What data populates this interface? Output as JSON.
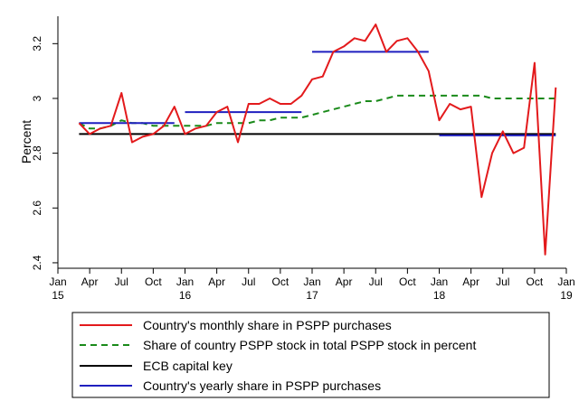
{
  "chart_data": {
    "type": "line",
    "ylabel": "Percent",
    "xlabel": "",
    "ylim": [
      2.38,
      3.3
    ],
    "yticks": [
      2.4,
      2.6,
      2.8,
      3,
      3.2
    ],
    "ytick_labels": [
      "2.4",
      "2.6",
      "2.8",
      "3",
      "3.2"
    ],
    "xlim": [
      "2015-01",
      "2019-01"
    ],
    "xticks": [
      {
        "x": "2015-01",
        "line1": "Jan",
        "line2": "15"
      },
      {
        "x": "2015-04",
        "line1": "Apr",
        "line2": ""
      },
      {
        "x": "2015-07",
        "line1": "Jul",
        "line2": ""
      },
      {
        "x": "2015-10",
        "line1": "Oct",
        "line2": ""
      },
      {
        "x": "2016-01",
        "line1": "Jan",
        "line2": "16"
      },
      {
        "x": "2016-04",
        "line1": "Apr",
        "line2": ""
      },
      {
        "x": "2016-07",
        "line1": "Jul",
        "line2": ""
      },
      {
        "x": "2016-10",
        "line1": "Oct",
        "line2": ""
      },
      {
        "x": "2017-01",
        "line1": "Jan",
        "line2": "17"
      },
      {
        "x": "2017-04",
        "line1": "Apr",
        "line2": ""
      },
      {
        "x": "2017-07",
        "line1": "Jul",
        "line2": ""
      },
      {
        "x": "2017-10",
        "line1": "Oct",
        "line2": ""
      },
      {
        "x": "2018-01",
        "line1": "Jan",
        "line2": "18"
      },
      {
        "x": "2018-04",
        "line1": "Apr",
        "line2": ""
      },
      {
        "x": "2018-07",
        "line1": "Jul",
        "line2": ""
      },
      {
        "x": "2018-10",
        "line1": "Oct",
        "line2": ""
      },
      {
        "x": "2019-01",
        "line1": "Jan",
        "line2": "19"
      }
    ],
    "grid": false,
    "legend_position": "bottom",
    "series": [
      {
        "name": "Country's monthly share in PSPP purchases",
        "color": "#e31a1c",
        "style": "solid",
        "x": [
          "2015-03",
          "2015-04",
          "2015-05",
          "2015-06",
          "2015-07",
          "2015-08",
          "2015-09",
          "2015-10",
          "2015-11",
          "2015-12",
          "2016-01",
          "2016-02",
          "2016-03",
          "2016-04",
          "2016-05",
          "2016-06",
          "2016-07",
          "2016-08",
          "2016-09",
          "2016-10",
          "2016-11",
          "2016-12",
          "2017-01",
          "2017-02",
          "2017-03",
          "2017-04",
          "2017-05",
          "2017-06",
          "2017-07",
          "2017-08",
          "2017-09",
          "2017-10",
          "2017-11",
          "2017-12",
          "2018-01",
          "2018-02",
          "2018-03",
          "2018-04",
          "2018-05",
          "2018-06",
          "2018-07",
          "2018-08",
          "2018-09",
          "2018-10",
          "2018-11",
          "2018-12"
        ],
        "y": [
          2.91,
          2.87,
          2.89,
          2.9,
          3.02,
          2.84,
          2.86,
          2.87,
          2.9,
          2.97,
          2.87,
          2.89,
          2.9,
          2.95,
          2.97,
          2.84,
          2.98,
          2.98,
          3.0,
          2.98,
          2.98,
          3.01,
          3.07,
          3.08,
          3.17,
          3.19,
          3.22,
          3.21,
          3.27,
          3.17,
          3.21,
          3.22,
          3.17,
          3.1,
          2.92,
          2.98,
          2.96,
          2.97,
          2.64,
          2.8,
          2.88,
          2.8,
          2.82,
          3.13,
          2.43,
          3.04
        ]
      },
      {
        "name": "Share of country PSPP stock in total PSPP stock in percent",
        "color": "#1a8a1a",
        "style": "dashed",
        "x": [
          "2015-03",
          "2015-04",
          "2015-05",
          "2015-06",
          "2015-07",
          "2015-08",
          "2015-09",
          "2015-10",
          "2015-11",
          "2015-12",
          "2016-01",
          "2016-02",
          "2016-03",
          "2016-04",
          "2016-05",
          "2016-06",
          "2016-07",
          "2016-08",
          "2016-09",
          "2016-10",
          "2016-11",
          "2016-12",
          "2017-01",
          "2017-02",
          "2017-03",
          "2017-04",
          "2017-05",
          "2017-06",
          "2017-07",
          "2017-08",
          "2017-09",
          "2017-10",
          "2017-11",
          "2017-12",
          "2018-01",
          "2018-02",
          "2018-03",
          "2018-04",
          "2018-05",
          "2018-06",
          "2018-07",
          "2018-08",
          "2018-09",
          "2018-10",
          "2018-11",
          "2018-12"
        ],
        "y": [
          2.91,
          2.89,
          2.89,
          2.9,
          2.92,
          2.91,
          2.91,
          2.9,
          2.9,
          2.9,
          2.9,
          2.9,
          2.9,
          2.91,
          2.91,
          2.91,
          2.91,
          2.92,
          2.92,
          2.93,
          2.93,
          2.93,
          2.94,
          2.95,
          2.96,
          2.97,
          2.98,
          2.99,
          2.99,
          3.0,
          3.01,
          3.01,
          3.01,
          3.01,
          3.01,
          3.01,
          3.01,
          3.01,
          3.01,
          3.0,
          3.0,
          3.0,
          3.0,
          3.0,
          3.0,
          3.0
        ]
      },
      {
        "name": "ECB capital key",
        "color": "#000000",
        "style": "solid",
        "x": [
          "2015-03",
          "2018-12"
        ],
        "y": [
          2.87,
          2.87
        ]
      },
      {
        "name": "Country's yearly share in PSPP purchases",
        "color": "#1f1fbf",
        "style": "solid",
        "segments": [
          {
            "x": [
              "2015-03",
              "2015-12"
            ],
            "y": [
              2.91,
              2.91
            ]
          },
          {
            "x": [
              "2016-01",
              "2016-12"
            ],
            "y": [
              2.95,
              2.95
            ]
          },
          {
            "x": [
              "2017-01",
              "2017-12"
            ],
            "y": [
              3.17,
              3.17
            ]
          },
          {
            "x": [
              "2018-01",
              "2018-12"
            ],
            "y": [
              2.865,
              2.865
            ]
          }
        ]
      }
    ]
  }
}
